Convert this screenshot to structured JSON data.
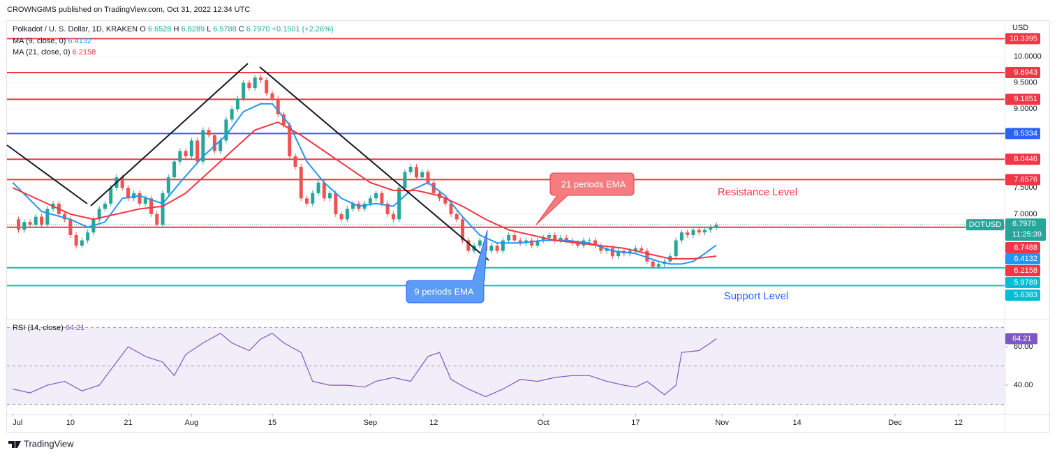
{
  "header": "CROWNGIMS published on TradingView.com, Oct 31, 2022 12:34 UTC",
  "footer": "TradingView",
  "chart_data": {
    "type": "candlestick",
    "title": "Polkadot / U. S. Dollar, 1D, KRAKEN",
    "ohlc": [
      {
        "label": "O",
        "value": 6.6528
      },
      {
        "label": "H",
        "value": 6.8289
      },
      {
        "label": "L",
        "value": 6.5788
      },
      {
        "label": "C",
        "value": 6.797
      }
    ],
    "ohlc_labels": [
      "6.6528",
      "6.8289",
      "6.5788",
      "6.7970"
    ],
    "change": {
      "value": 0.1501,
      "label": "+0.1501"
    },
    "change_pct": {
      "value": 2.26,
      "label": "(+2.26%)"
    },
    "currency": "USD",
    "up_color": "#26a69a",
    "down_color": "#ef5350",
    "closes": [
      6.9,
      6.7,
      6.85,
      6.8,
      6.95,
      6.8,
      7.1,
      7.2,
      7.0,
      6.9,
      6.6,
      6.4,
      6.5,
      6.65,
      6.9,
      7.1,
      7.2,
      7.5,
      7.7,
      7.5,
      7.3,
      7.4,
      7.2,
      7.3,
      7.0,
      6.8,
      7.4,
      7.7,
      8.0,
      8.2,
      8.1,
      8.4,
      8.0,
      8.6,
      8.5,
      8.2,
      8.4,
      8.8,
      9.0,
      9.2,
      9.5,
      9.4,
      9.6,
      9.55,
      9.3,
      9.2,
      8.9,
      8.7,
      8.1,
      7.9,
      7.3,
      7.2,
      7.4,
      7.6,
      7.3,
      7.4,
      7.0,
      6.9,
      7.1,
      7.2,
      7.1,
      7.2,
      7.3,
      7.4,
      7.2,
      7.0,
      6.9,
      7.5,
      7.8,
      7.9,
      7.7,
      7.8,
      7.6,
      7.4,
      7.3,
      7.2,
      7.0,
      6.9,
      6.5,
      6.3,
      6.4,
      6.5,
      6.3,
      6.4,
      6.3,
      6.5,
      6.6,
      6.5,
      6.45,
      6.5,
      6.4,
      6.5,
      6.55,
      6.6,
      6.5,
      6.55,
      6.5,
      6.45,
      6.4,
      6.5,
      6.5,
      6.4,
      6.3,
      6.35,
      6.2,
      6.3,
      6.25,
      6.3,
      6.35,
      6.3,
      6.1,
      6.0,
      6.05,
      6.1,
      6.2,
      6.5,
      6.65,
      6.6,
      6.7,
      6.65,
      6.7,
      6.75,
      6.797
    ],
    "series": [
      {
        "name": "MA (9, close, 0)",
        "value": 6.4132,
        "color": "#2196f3",
        "x": [
          0,
          5,
          10,
          13,
          16,
          19,
          22,
          26,
          29,
          33,
          37,
          40,
          43,
          45,
          48,
          51,
          54,
          57,
          60,
          63,
          66,
          69,
          72,
          75,
          78,
          81,
          84,
          88,
          92,
          96,
          100,
          104,
          108,
          112,
          114,
          116,
          118,
          120,
          122
        ],
        "values": [
          7.6,
          7.05,
          6.9,
          6.75,
          6.85,
          7.3,
          7.35,
          7.2,
          7.6,
          8.1,
          8.5,
          8.95,
          9.1,
          9.1,
          8.7,
          8.0,
          7.6,
          7.3,
          7.15,
          7.2,
          7.15,
          7.45,
          7.6,
          7.35,
          6.95,
          6.6,
          6.45,
          6.45,
          6.5,
          6.5,
          6.45,
          6.3,
          6.25,
          6.1,
          6.05,
          6.05,
          6.1,
          6.25,
          6.41
        ]
      },
      {
        "name": "MA (21, close, 0)",
        "value": 6.2158,
        "color": "#f23645",
        "x": [
          0,
          5,
          10,
          14,
          18,
          22,
          26,
          30,
          34,
          38,
          42,
          46,
          50,
          54,
          58,
          62,
          66,
          70,
          74,
          78,
          82,
          86,
          90,
          94,
          98,
          102,
          106,
          110,
          114,
          118,
          122
        ],
        "values": [
          7.5,
          7.25,
          7.0,
          6.9,
          7.0,
          7.1,
          7.15,
          7.4,
          7.8,
          8.2,
          8.6,
          8.75,
          8.5,
          8.2,
          7.9,
          7.6,
          7.45,
          7.45,
          7.35,
          7.15,
          6.9,
          6.7,
          6.6,
          6.5,
          6.45,
          6.4,
          6.35,
          6.25,
          6.15,
          6.15,
          6.2
        ]
      }
    ],
    "levels": [
      {
        "value": 10.3395,
        "color": "#f23645"
      },
      {
        "value": 9.6943,
        "color": "#f23645"
      },
      {
        "value": 9.1851,
        "color": "#f23645"
      },
      {
        "value": 8.5334,
        "color": "#2962ff"
      },
      {
        "value": 8.0446,
        "color": "#f23645"
      },
      {
        "value": 7.6576,
        "color": "#f23645"
      },
      {
        "value": 6.7488,
        "color": "#f23645"
      },
      {
        "value": 5.9789,
        "color": "#00bcd4"
      },
      {
        "value": 5.6383,
        "color": "#00bcd4"
      }
    ],
    "last": {
      "symbol": "DOTUSD",
      "value": 6.797,
      "label": "6.7970",
      "countdown": "11:25:39",
      "color": "#26a69a"
    },
    "ylim": [
      5.033,
      10.677
    ],
    "yticks": [
      {
        "value": 10,
        "label": "10.0000"
      },
      {
        "value": 9.5,
        "label": "9.5000"
      },
      {
        "value": 9,
        "label": "9.0000"
      },
      {
        "value": 7.5,
        "label": "7.5000"
      },
      {
        "value": 7,
        "label": "7.0000"
      }
    ],
    "xlim": [
      -1,
      172
    ],
    "xticks": [
      {
        "value": 0,
        "label": "Jul"
      },
      10,
      {
        "value": 20,
        "label": "21"
      },
      {
        "value": 31,
        "label": "Aug"
      },
      {
        "value": 45,
        "label": "15"
      },
      {
        "value": 62,
        "label": "Sep"
      },
      {
        "value": 73,
        "label": "12"
      },
      {
        "value": 92,
        "label": "Oct"
      },
      {
        "value": 108,
        "label": "17"
      },
      {
        "value": 123,
        "label": "Nov"
      },
      {
        "value": 136,
        "label": "14"
      },
      {
        "value": 153,
        "label": "Dec"
      },
      {
        "value": 164,
        "label": "12"
      }
    ],
    "annotations": {
      "ema21": "21 periods EMA",
      "ema9": "9 periods EMA",
      "resistance": "Resistance Level",
      "support": "Support Level"
    },
    "rsi": {
      "name": "RSI (14, close)",
      "value": 64.21,
      "color": "#7e57c2",
      "x": [
        0,
        3,
        6,
        9,
        12,
        15,
        18,
        20,
        23,
        26,
        28,
        30,
        33,
        36,
        38,
        41,
        43,
        45,
        47,
        50,
        52,
        55,
        58,
        61,
        63,
        66,
        69,
        72,
        74,
        76,
        79,
        82,
        85,
        88,
        91,
        94,
        97,
        100,
        103,
        106,
        108,
        110,
        113,
        115,
        116,
        119,
        121,
        122
      ],
      "values": [
        38,
        36,
        40,
        42,
        37,
        40,
        52,
        60,
        55,
        52,
        45,
        56,
        62,
        67,
        62,
        58,
        64,
        67,
        62,
        57,
        42,
        40,
        40,
        39,
        42,
        44,
        42,
        55,
        57,
        43,
        38,
        34,
        38,
        43,
        42,
        44,
        45,
        45,
        42,
        40,
        39,
        42,
        35,
        40,
        57,
        58,
        62,
        64.21
      ],
      "ylim": [
        25.5,
        72.7
      ],
      "yticks": [
        {
          "value": 60,
          "label": "60.00"
        },
        {
          "value": 40,
          "label": "40.00"
        }
      ],
      "bands": [
        70,
        50,
        30
      ]
    }
  }
}
